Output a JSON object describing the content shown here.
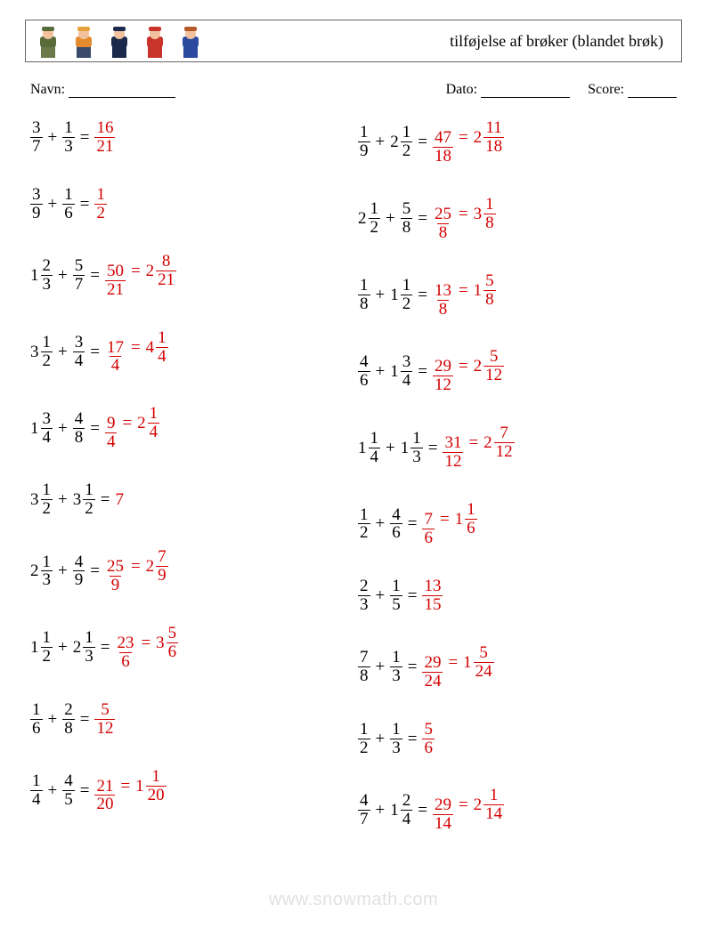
{
  "header": {
    "title": "tilføjelse af brøker (blandet brøk)",
    "icons": [
      {
        "name": "soldier-icon",
        "skin": "#f2c19e",
        "top": "#5a6b3a",
        "bot": "#6b7a4a",
        "hat": "#5a6b3a"
      },
      {
        "name": "worker-icon",
        "skin": "#f2c19e",
        "top": "#e38b2d",
        "bot": "#3a4a6b",
        "hat": "#e8a23c"
      },
      {
        "name": "police-icon",
        "skin": "#f2c19e",
        "top": "#1b2a4a",
        "bot": "#1b2a4a",
        "hat": "#1b2a4a"
      },
      {
        "name": "firefighter-icon",
        "skin": "#f2c19e",
        "top": "#c8332b",
        "bot": "#c8332b",
        "hat": "#c8332b"
      },
      {
        "name": "businesswoman-icon",
        "skin": "#f2c19e",
        "top": "#2b4aa0",
        "bot": "#2b4aa0",
        "hat": "#b45a2b"
      }
    ]
  },
  "meta": {
    "name_label": "Navn:",
    "date_label": "Dato:",
    "score_label": "Score:"
  },
  "answer_color": "#d40000",
  "problems_left": [
    {
      "a": {
        "n": 3,
        "d": 7
      },
      "b": {
        "n": 1,
        "d": 3
      },
      "ans": [
        {
          "n": 16,
          "d": 21
        }
      ]
    },
    {
      "a": {
        "n": 3,
        "d": 9
      },
      "b": {
        "n": 1,
        "d": 6
      },
      "ans": [
        {
          "n": 1,
          "d": 2
        }
      ]
    },
    {
      "a": {
        "w": 1,
        "n": 2,
        "d": 3
      },
      "b": {
        "n": 5,
        "d": 7
      },
      "ans": [
        {
          "n": 50,
          "d": 21
        },
        {
          "w": 2,
          "n": 8,
          "d": 21
        }
      ]
    },
    {
      "a": {
        "w": 3,
        "n": 1,
        "d": 2
      },
      "b": {
        "n": 3,
        "d": 4
      },
      "ans": [
        {
          "n": 17,
          "d": 4
        },
        {
          "w": 4,
          "n": 1,
          "d": 4
        }
      ]
    },
    {
      "a": {
        "w": 1,
        "n": 3,
        "d": 4
      },
      "b": {
        "n": 4,
        "d": 8
      },
      "ans": [
        {
          "n": 9,
          "d": 4
        },
        {
          "w": 2,
          "n": 1,
          "d": 4
        }
      ]
    },
    {
      "a": {
        "w": 3,
        "n": 1,
        "d": 2
      },
      "b": {
        "w": 3,
        "n": 1,
        "d": 2
      },
      "ans": [
        {
          "int": 7
        }
      ]
    },
    {
      "a": {
        "w": 2,
        "n": 1,
        "d": 3
      },
      "b": {
        "n": 4,
        "d": 9
      },
      "ans": [
        {
          "n": 25,
          "d": 9
        },
        {
          "w": 2,
          "n": 7,
          "d": 9
        }
      ]
    },
    {
      "a": {
        "w": 1,
        "n": 1,
        "d": 2
      },
      "b": {
        "w": 2,
        "n": 1,
        "d": 3
      },
      "ans": [
        {
          "n": 23,
          "d": 6
        },
        {
          "w": 3,
          "n": 5,
          "d": 6
        }
      ]
    },
    {
      "a": {
        "n": 1,
        "d": 6
      },
      "b": {
        "n": 2,
        "d": 8
      },
      "ans": [
        {
          "n": 5,
          "d": 12
        }
      ]
    },
    {
      "a": {
        "n": 1,
        "d": 4
      },
      "b": {
        "n": 4,
        "d": 5
      },
      "ans": [
        {
          "n": 21,
          "d": 20
        },
        {
          "w": 1,
          "n": 1,
          "d": 20
        }
      ]
    }
  ],
  "problems_right": [
    {
      "a": {
        "n": 1,
        "d": 9
      },
      "b": {
        "w": 2,
        "n": 1,
        "d": 2
      },
      "ans": [
        {
          "n": 47,
          "d": 18
        },
        {
          "w": 2,
          "n": 11,
          "d": 18
        }
      ]
    },
    {
      "a": {
        "w": 2,
        "n": 1,
        "d": 2
      },
      "b": {
        "n": 5,
        "d": 8
      },
      "ans": [
        {
          "n": 25,
          "d": 8
        },
        {
          "w": 3,
          "n": 1,
          "d": 8
        }
      ]
    },
    {
      "a": {
        "n": 1,
        "d": 8
      },
      "b": {
        "w": 1,
        "n": 1,
        "d": 2
      },
      "ans": [
        {
          "n": 13,
          "d": 8
        },
        {
          "w": 1,
          "n": 5,
          "d": 8
        }
      ]
    },
    {
      "a": {
        "n": 4,
        "d": 6
      },
      "b": {
        "w": 1,
        "n": 3,
        "d": 4
      },
      "ans": [
        {
          "n": 29,
          "d": 12
        },
        {
          "w": 2,
          "n": 5,
          "d": 12
        }
      ]
    },
    {
      "a": {
        "w": 1,
        "n": 1,
        "d": 4
      },
      "b": {
        "w": 1,
        "n": 1,
        "d": 3
      },
      "ans": [
        {
          "n": 31,
          "d": 12
        },
        {
          "w": 2,
          "n": 7,
          "d": 12
        }
      ]
    },
    {
      "a": {
        "n": 1,
        "d": 2
      },
      "b": {
        "n": 4,
        "d": 6
      },
      "ans": [
        {
          "n": 7,
          "d": 6
        },
        {
          "w": 1,
          "n": 1,
          "d": 6
        }
      ]
    },
    {
      "a": {
        "n": 2,
        "d": 3
      },
      "b": {
        "n": 1,
        "d": 5
      },
      "ans": [
        {
          "n": 13,
          "d": 15
        }
      ]
    },
    {
      "a": {
        "n": 7,
        "d": 8
      },
      "b": {
        "n": 1,
        "d": 3
      },
      "ans": [
        {
          "n": 29,
          "d": 24
        },
        {
          "w": 1,
          "n": 5,
          "d": 24
        }
      ]
    },
    {
      "a": {
        "n": 1,
        "d": 2
      },
      "b": {
        "n": 1,
        "d": 3
      },
      "ans": [
        {
          "n": 5,
          "d": 6
        }
      ]
    },
    {
      "a": {
        "n": 4,
        "d": 7
      },
      "b": {
        "w": 1,
        "n": 2,
        "d": 4
      },
      "ans": [
        {
          "n": 29,
          "d": 14
        },
        {
          "w": 2,
          "n": 1,
          "d": 14
        }
      ]
    }
  ],
  "watermark": "www.snowmath.com"
}
